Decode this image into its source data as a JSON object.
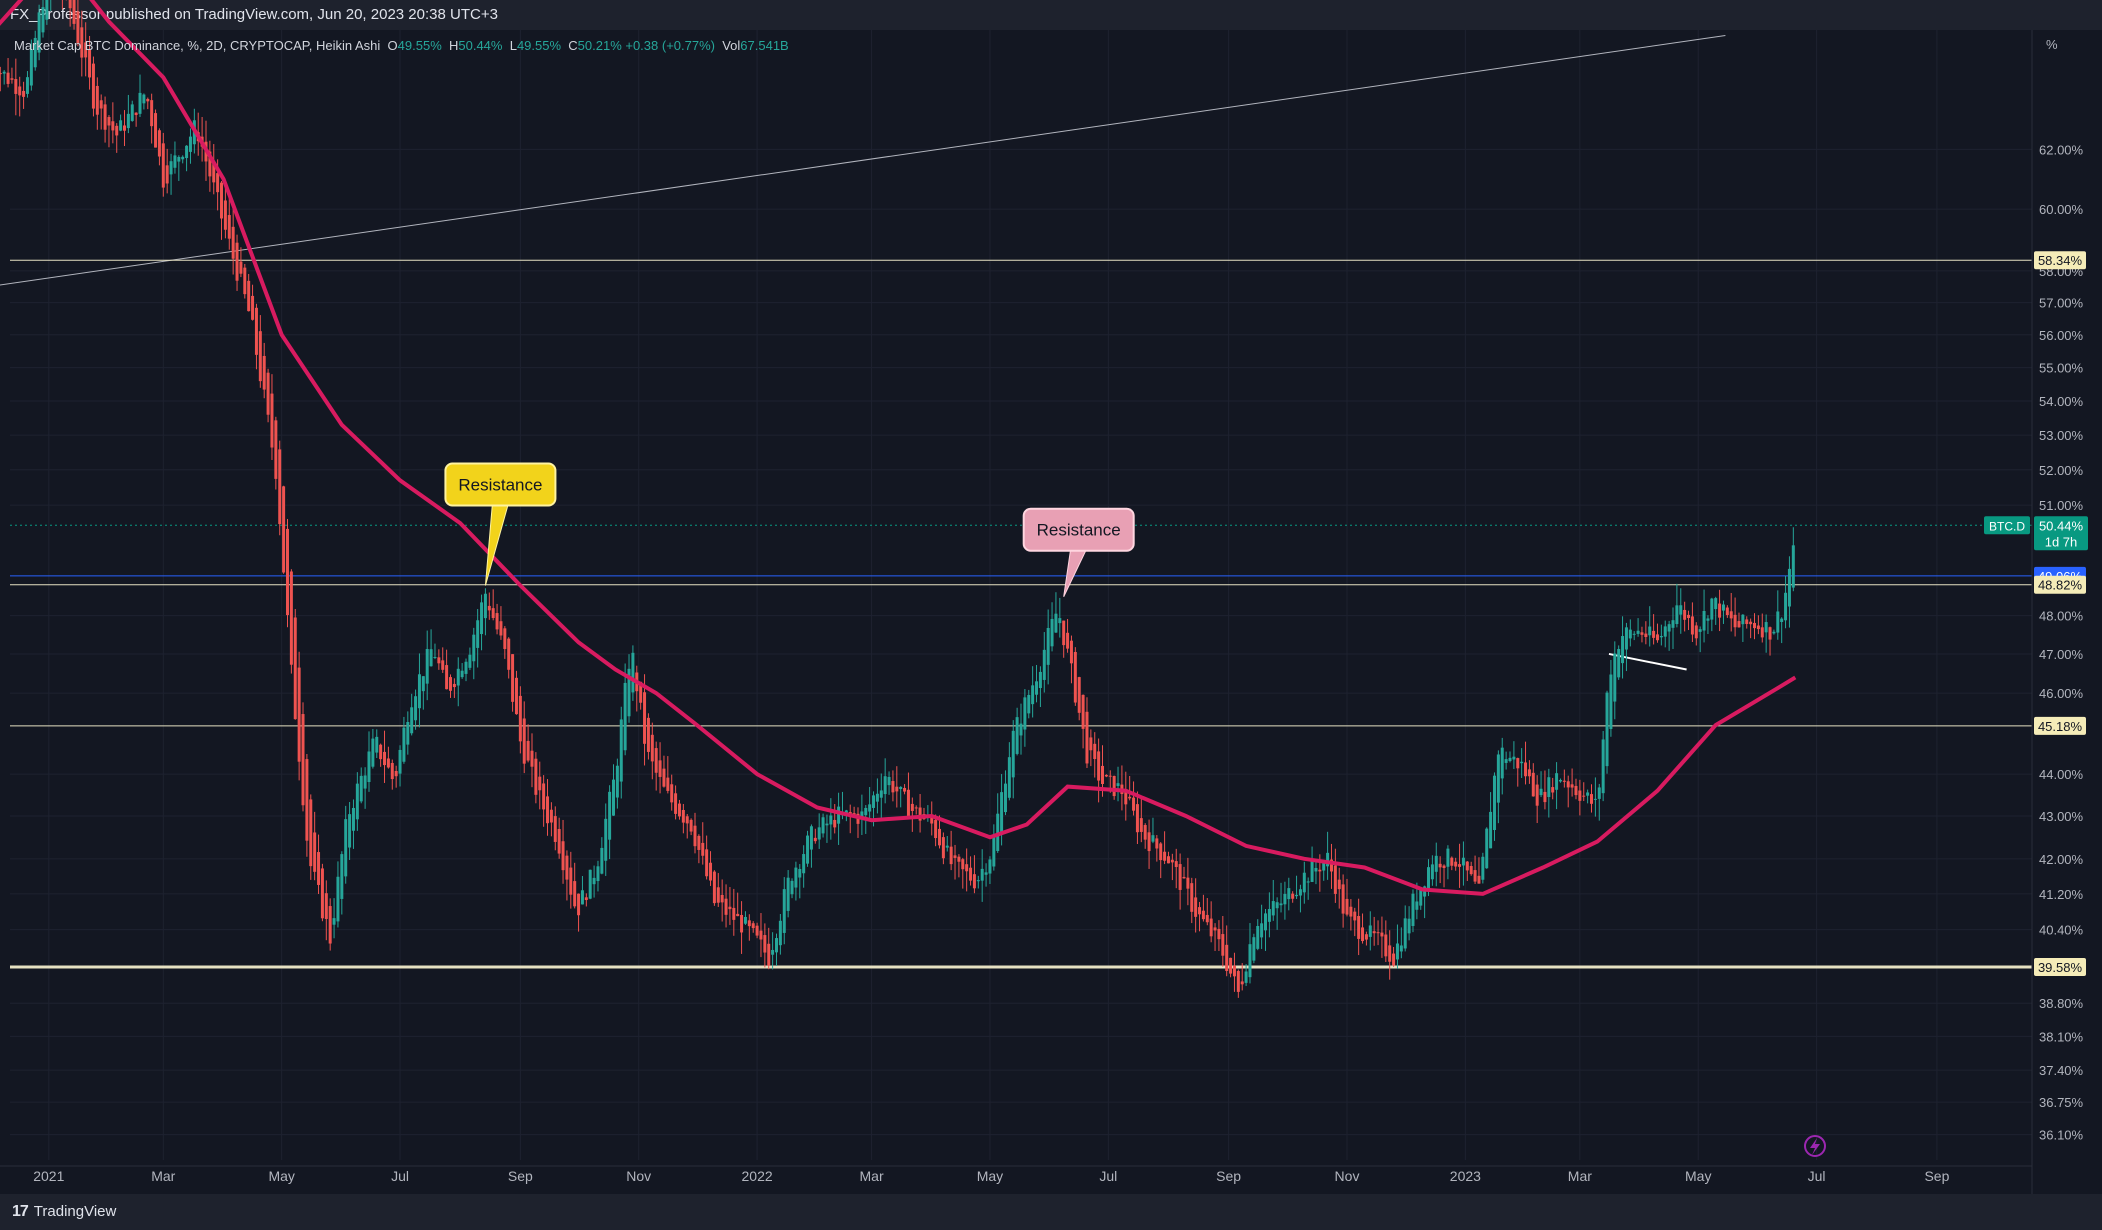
{
  "publish_line": "FX_Professor published on TradingView.com, Jun 20, 2023 20:38 UTC+3",
  "footer_brand": "TradingView",
  "colors": {
    "background": "#131722",
    "bull": "#26a69a",
    "bear": "#ef5350",
    "ma": "#d81b60",
    "level": "#e6e1c2",
    "blue_level": "#2962ff",
    "current_tag": "#089981"
  },
  "chart_data": {
    "type": "candlestick",
    "title": "",
    "legend": {
      "symbol": "Market Cap BTC Dominance, %, 2D, CRYPTOCAP, Heikin Ashi",
      "o_label": "O",
      "o": "49.55%",
      "h_label": "H",
      "h": "50.44%",
      "l_label": "L",
      "l": "49.55%",
      "c_label": "C",
      "c": "50.21%",
      "chg": "+0.38 (+0.77%)",
      "vol_label": "Vol",
      "vol": "67.541B"
    },
    "y_unit": "%",
    "y_ticks": [
      "62.00%",
      "60.00%",
      "58.00%",
      "57.00%",
      "56.00%",
      "55.00%",
      "54.00%",
      "53.00%",
      "52.00%",
      "51.00%",
      "48.00%",
      "47.00%",
      "46.00%",
      "44.00%",
      "43.00%",
      "42.00%",
      "41.20%",
      "40.40%",
      "38.80%",
      "38.10%",
      "37.40%",
      "36.75%",
      "36.10%"
    ],
    "x_ticks": [
      "2021",
      "Mar",
      "May",
      "Jul",
      "Sep",
      "Nov",
      "2022",
      "Mar",
      "May",
      "Jul",
      "Sep",
      "Nov",
      "2023",
      "Mar",
      "May",
      "Jul",
      "Sep"
    ],
    "price_levels": [
      {
        "label": "58.34%",
        "value": 58.34
      },
      {
        "label": "49.06%",
        "value": 49.06
      },
      {
        "label": "48.82%",
        "value": 48.82
      },
      {
        "label": "45.18%",
        "value": 45.18
      },
      {
        "label": "39.58%",
        "value": 39.58
      }
    ],
    "current": {
      "symbol": "BTC.D",
      "price": "50.44%",
      "countdown": "1d 7h",
      "value": 50.44
    },
    "annotations": [
      {
        "text": "Resistance",
        "date": "2021-08-14",
        "value": 48.8
      },
      {
        "text": "Resistance",
        "date": "2022-06-08",
        "value": 48.5
      }
    ],
    "price_anchors": [
      [
        "2020-12-01",
        65.0
      ],
      [
        "2020-12-20",
        64.0
      ],
      [
        "2021-01-01",
        68.5
      ],
      [
        "2021-01-12",
        67.0
      ],
      [
        "2021-01-25",
        63.5
      ],
      [
        "2021-02-05",
        62.5
      ],
      [
        "2021-02-20",
        64.0
      ],
      [
        "2021-03-01",
        61.0
      ],
      [
        "2021-03-18",
        62.8
      ],
      [
        "2021-04-01",
        59.5
      ],
      [
        "2021-04-15",
        56.5
      ],
      [
        "2021-04-28",
        52.0
      ],
      [
        "2021-05-06",
        46.5
      ],
      [
        "2021-05-15",
        42.0
      ],
      [
        "2021-05-26",
        40.2
      ],
      [
        "2021-06-04",
        43.0
      ],
      [
        "2021-06-18",
        44.8
      ],
      [
        "2021-06-28",
        43.8
      ],
      [
        "2021-07-06",
        45.8
      ],
      [
        "2021-07-18",
        47.2
      ],
      [
        "2021-07-25",
        46.0
      ],
      [
        "2021-08-06",
        47.2
      ],
      [
        "2021-08-14",
        48.6
      ],
      [
        "2021-08-24",
        47.0
      ],
      [
        "2021-09-01",
        44.8
      ],
      [
        "2021-09-10",
        43.5
      ],
      [
        "2021-09-20",
        42.5
      ],
      [
        "2021-09-30",
        40.8
      ],
      [
        "2021-10-10",
        41.8
      ],
      [
        "2021-10-20",
        44.0
      ],
      [
        "2021-10-28",
        47.2
      ],
      [
        "2021-11-05",
        44.5
      ],
      [
        "2021-11-15",
        43.5
      ],
      [
        "2021-11-28",
        42.8
      ],
      [
        "2021-12-10",
        41.0
      ],
      [
        "2021-12-25",
        40.5
      ],
      [
        "2022-01-07",
        39.8
      ],
      [
        "2022-01-18",
        41.6
      ],
      [
        "2022-01-30",
        42.6
      ],
      [
        "2022-02-12",
        43.0
      ],
      [
        "2022-02-25",
        43.0
      ],
      [
        "2022-03-08",
        44.0
      ],
      [
        "2022-03-20",
        43.2
      ],
      [
        "2022-04-01",
        42.8
      ],
      [
        "2022-04-12",
        41.8
      ],
      [
        "2022-04-24",
        41.5
      ],
      [
        "2022-05-02",
        42.2
      ],
      [
        "2022-05-12",
        44.8
      ],
      [
        "2022-05-25",
        46.5
      ],
      [
        "2022-06-05",
        48.2
      ],
      [
        "2022-06-12",
        46.5
      ],
      [
        "2022-06-20",
        44.5
      ],
      [
        "2022-06-28",
        43.8
      ],
      [
        "2022-07-08",
        43.6
      ],
      [
        "2022-07-18",
        42.6
      ],
      [
        "2022-08-01",
        42.0
      ],
      [
        "2022-08-15",
        40.8
      ],
      [
        "2022-08-28",
        40.0
      ],
      [
        "2022-09-06",
        39.0
      ],
      [
        "2022-09-15",
        40.6
      ],
      [
        "2022-09-28",
        41.0
      ],
      [
        "2022-10-10",
        41.6
      ],
      [
        "2022-10-22",
        42.0
      ],
      [
        "2022-11-01",
        40.6
      ],
      [
        "2022-11-15",
        40.2
      ],
      [
        "2022-11-25",
        39.8
      ],
      [
        "2022-12-05",
        41.0
      ],
      [
        "2022-12-15",
        42.0
      ],
      [
        "2022-12-28",
        42.0
      ],
      [
        "2023-01-08",
        41.2
      ],
      [
        "2023-01-18",
        44.6
      ],
      [
        "2023-01-30",
        44.2
      ],
      [
        "2023-02-08",
        43.4
      ],
      [
        "2023-02-18",
        44.0
      ],
      [
        "2023-02-28",
        43.6
      ],
      [
        "2023-03-10",
        43.2
      ],
      [
        "2023-03-16",
        46.5
      ],
      [
        "2023-03-22",
        47.5
      ],
      [
        "2023-04-01",
        47.6
      ],
      [
        "2023-04-10",
        47.3
      ],
      [
        "2023-04-20",
        48.3
      ],
      [
        "2023-04-30",
        47.6
      ],
      [
        "2023-05-08",
        48.4
      ],
      [
        "2023-05-20",
        47.7
      ],
      [
        "2023-05-30",
        47.8
      ],
      [
        "2023-06-08",
        47.6
      ],
      [
        "2023-06-14",
        48.3
      ],
      [
        "2023-06-20",
        50.2
      ]
    ],
    "ma_anchors": [
      [
        "2020-12-01",
        66.0
      ],
      [
        "2020-12-20",
        67.5
      ],
      [
        "2021-01-10",
        68.5
      ],
      [
        "2021-02-01",
        66.5
      ],
      [
        "2021-03-01",
        64.5
      ],
      [
        "2021-04-01",
        61.0
      ],
      [
        "2021-05-01",
        56.0
      ],
      [
        "2021-06-01",
        53.3
      ],
      [
        "2021-07-01",
        51.7
      ],
      [
        "2021-08-01",
        50.5
      ],
      [
        "2021-09-01",
        48.8
      ],
      [
        "2021-10-01",
        47.3
      ],
      [
        "2021-10-20",
        46.6
      ],
      [
        "2021-11-10",
        46.0
      ],
      [
        "2021-12-01",
        45.2
      ],
      [
        "2022-01-01",
        44.0
      ],
      [
        "2022-02-01",
        43.2
      ],
      [
        "2022-03-01",
        42.9
      ],
      [
        "2022-04-01",
        43.0
      ],
      [
        "2022-05-01",
        42.5
      ],
      [
        "2022-05-20",
        42.8
      ],
      [
        "2022-06-10",
        43.7
      ],
      [
        "2022-07-10",
        43.6
      ],
      [
        "2022-08-10",
        43.0
      ],
      [
        "2022-09-10",
        42.3
      ],
      [
        "2022-10-10",
        42.0
      ],
      [
        "2022-11-10",
        41.8
      ],
      [
        "2022-12-10",
        41.3
      ],
      [
        "2023-01-10",
        41.2
      ],
      [
        "2023-02-10",
        41.8
      ],
      [
        "2023-03-10",
        42.4
      ],
      [
        "2023-04-10",
        43.6
      ],
      [
        "2023-05-10",
        45.2
      ],
      [
        "2023-06-10",
        46.1
      ],
      [
        "2023-06-20",
        46.4
      ]
    ],
    "trendlines": [
      {
        "from": [
          "2020-12-01",
          57.5
        ],
        "to": [
          "2023-05-15",
          66.0
        ],
        "color": "#b2b5be"
      },
      {
        "from": [
          "2023-03-16",
          47.0
        ],
        "to": [
          "2023-04-25",
          46.6
        ],
        "color": "#ffffff"
      }
    ]
  }
}
